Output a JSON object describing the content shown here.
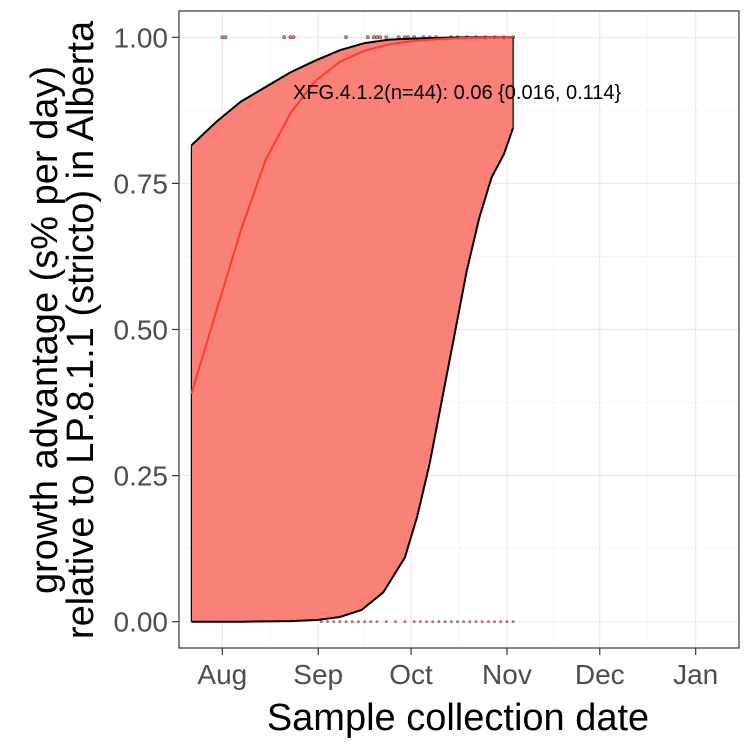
{
  "chart_data": {
    "type": "line",
    "xlabel": "Sample collection date",
    "ylabel_line1": "growth advantage (s% per day)",
    "ylabel_line2": "relative to LP.8.1.1 (stricto) in Alberta",
    "x_ticks": [
      "Aug",
      "Sep",
      "Oct",
      "Nov",
      "Dec",
      "Jan"
    ],
    "x_tick_dates": [
      "2025-08-01",
      "2025-09-01",
      "2025-10-01",
      "2025-11-01",
      "2025-12-01",
      "2026-01-01"
    ],
    "xlim": [
      "2025-07-18",
      "2026-01-15"
    ],
    "y_ticks": [
      "0.00",
      "0.25",
      "0.50",
      "0.75",
      "1.00"
    ],
    "ylim": [
      -0.045,
      1.045
    ],
    "grid": true,
    "annotation": "XFG.4.1.2(n=44): 0.06 {0.016, 0.114}",
    "series": [
      {
        "color": "#f8766d",
        "fit": {
          "x": [
            "2025-07-22",
            "2025-07-30",
            "2025-08-07",
            "2025-08-15",
            "2025-08-23",
            "2025-08-31",
            "2025-09-08",
            "2025-09-16",
            "2025-09-24",
            "2025-10-02",
            "2025-10-10",
            "2025-10-18",
            "2025-10-26",
            "2025-11-03"
          ],
          "y": [
            0.39,
            0.53,
            0.67,
            0.79,
            0.87,
            0.925,
            0.958,
            0.977,
            0.988,
            0.994,
            0.997,
            0.999,
            0.9995,
            1.0
          ]
        },
        "upper": {
          "x": [
            "2025-07-22",
            "2025-07-30",
            "2025-08-07",
            "2025-08-15",
            "2025-08-23",
            "2025-08-31",
            "2025-09-08",
            "2025-09-16",
            "2025-09-24",
            "2025-10-02",
            "2025-10-10",
            "2025-10-18",
            "2025-10-26",
            "2025-11-03"
          ],
          "y": [
            0.815,
            0.855,
            0.89,
            0.915,
            0.94,
            0.96,
            0.978,
            0.99,
            0.996,
            0.998,
            0.999,
            1.0,
            1.0,
            1.0
          ]
        },
        "lower": {
          "x": [
            "2025-07-22",
            "2025-08-07",
            "2025-08-23",
            "2025-09-01",
            "2025-09-08",
            "2025-09-15",
            "2025-09-22",
            "2025-09-29",
            "2025-10-03",
            "2025-10-07",
            "2025-10-11",
            "2025-10-15",
            "2025-10-19",
            "2025-10-23",
            "2025-10-27",
            "2025-10-31",
            "2025-11-03"
          ],
          "y": [
            0.0,
            0.0,
            0.001,
            0.003,
            0.008,
            0.02,
            0.05,
            0.11,
            0.18,
            0.27,
            0.38,
            0.49,
            0.6,
            0.69,
            0.76,
            0.8,
            0.845
          ]
        },
        "points_top": [
          "2025-08-01",
          "2025-08-02",
          "2025-08-21",
          "2025-08-23",
          "2025-08-24",
          "2025-09-10",
          "2025-09-17",
          "2025-09-19",
          "2025-09-20",
          "2025-09-21",
          "2025-09-23",
          "2025-09-27",
          "2025-09-29",
          "2025-09-30",
          "2025-10-02",
          "2025-10-05",
          "2025-10-07",
          "2025-10-09",
          "2025-10-14",
          "2025-10-16",
          "2025-10-19",
          "2025-10-22",
          "2025-10-25",
          "2025-10-28",
          "2025-10-31",
          "2025-11-03"
        ],
        "points_bottom": [
          "2025-09-02",
          "2025-09-04",
          "2025-09-06",
          "2025-09-08",
          "2025-09-10",
          "2025-09-12",
          "2025-09-14",
          "2025-09-16",
          "2025-09-18",
          "2025-09-20",
          "2025-09-23",
          "2025-09-26",
          "2025-09-29",
          "2025-10-02",
          "2025-10-04",
          "2025-10-06",
          "2025-10-08",
          "2025-10-10",
          "2025-10-12",
          "2025-10-14",
          "2025-10-16",
          "2025-10-18",
          "2025-10-20",
          "2025-10-22",
          "2025-10-24",
          "2025-10-26",
          "2025-10-28",
          "2025-10-30",
          "2025-11-01",
          "2025-11-03"
        ]
      }
    ]
  }
}
